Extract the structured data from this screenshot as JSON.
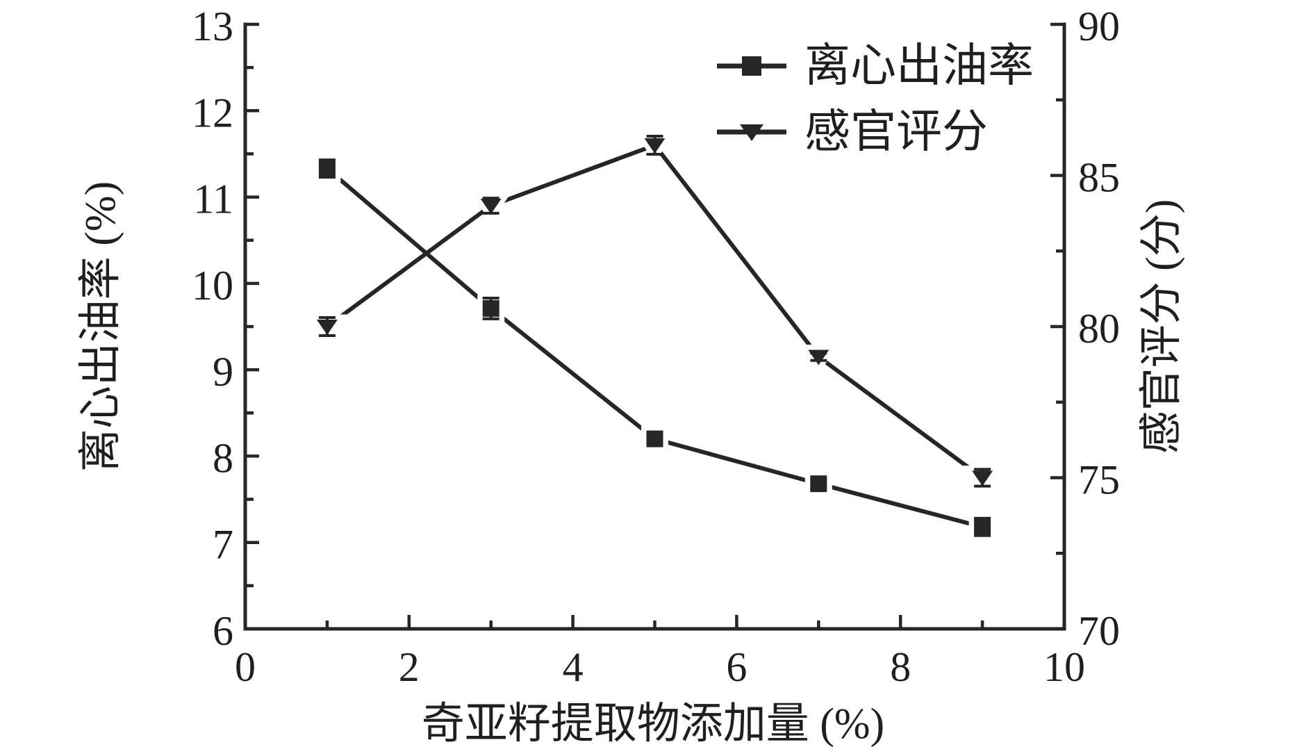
{
  "figure": {
    "background": "#ffffff"
  },
  "colors": {
    "line": "#262626",
    "text": "#1f1f1f",
    "background": "#ffffff"
  },
  "chart_data": {
    "type": "line",
    "title": "",
    "x": [
      1,
      3,
      5,
      7,
      9
    ],
    "series": [
      {
        "name": "离心出油率",
        "axis": "left",
        "marker": "square",
        "color": "#262626",
        "values": [
          11.33,
          9.71,
          8.2,
          7.68,
          7.18
        ],
        "errors": [
          0.1,
          0.12,
          0.06,
          0.05,
          0.1
        ]
      },
      {
        "name": "感官评分",
        "axis": "right",
        "marker": "triangle-down",
        "color": "#262626",
        "values": [
          80,
          84,
          86,
          79,
          75
        ],
        "errors": [
          0.3,
          0.25,
          0.3,
          0.12,
          0.28
        ]
      }
    ],
    "x_axis": {
      "label": "奇亚籽提取物添加量 (%)",
      "range": [
        0,
        10
      ],
      "major_ticks": [
        0,
        2,
        4,
        6,
        8,
        10
      ],
      "minor_ticks": [
        1,
        3,
        5,
        7,
        9
      ]
    },
    "y_axis_left": {
      "label": "离心出油率 (%)",
      "range": [
        6,
        13
      ],
      "major_ticks": [
        6,
        7,
        8,
        9,
        10,
        11,
        12,
        13
      ],
      "minor_ticks": [
        6.5,
        7.5,
        8.5,
        9.5,
        10.5,
        11.5,
        12.5
      ]
    },
    "y_axis_right": {
      "label": "感官评分 (分)",
      "range": [
        70,
        90
      ],
      "major_ticks": [
        70,
        75,
        80,
        85,
        90
      ],
      "minor_ticks": [
        72.5,
        77.5,
        82.5,
        87.5
      ]
    },
    "grid": false,
    "legend_position": "top-right-inside"
  }
}
